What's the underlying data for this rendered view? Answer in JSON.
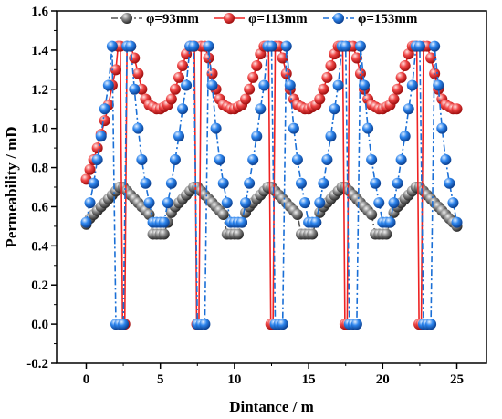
{
  "chart_data": {
    "type": "line",
    "xlabel": "Dintance / m",
    "ylabel": "Permeability / mD",
    "xlim": [
      -2,
      27
    ],
    "ylim": [
      -0.2,
      1.6
    ],
    "xticks": [
      "0",
      "5",
      "10",
      "15",
      "20",
      "25"
    ],
    "yticks": [
      "-0.2",
      "0.0",
      "0.2",
      "0.4",
      "0.6",
      "0.8",
      "1.0",
      "1.2",
      "1.4",
      "1.6"
    ],
    "legend_position": "top",
    "series": [
      {
        "name": "φ=93mm",
        "color": "#555555",
        "line_style": "dash-dot",
        "x": [
          0,
          0.25,
          0.5,
          0.75,
          1,
          1.25,
          1.5,
          1.75,
          2,
          2.25,
          2.5,
          2.75,
          3,
          3.25,
          3.5,
          3.75,
          4,
          4.25,
          4.5,
          4.75,
          5,
          5.25,
          5.5,
          5.75,
          6,
          6.25,
          6.5,
          6.75,
          7,
          7.25,
          7.5,
          7.75,
          8,
          8.25,
          8.5,
          8.75,
          9,
          9.25,
          9.5,
          9.75,
          10,
          10.25,
          10.5,
          10.75,
          11,
          11.25,
          11.5,
          11.75,
          12,
          12.25,
          12.5,
          12.75,
          13,
          13.25,
          13.5,
          13.75,
          14,
          14.25,
          14.5,
          14.75,
          15,
          15.25,
          15.5,
          15.75,
          16,
          16.25,
          16.5,
          16.75,
          17,
          17.25,
          17.5,
          17.75,
          18,
          18.25,
          18.5,
          18.75,
          19,
          19.25,
          19.5,
          19.75,
          20,
          20.25,
          20.5,
          20.75,
          21,
          21.25,
          21.5,
          21.75,
          22,
          22.25,
          22.5,
          22.75,
          23,
          23.25,
          23.5,
          23.75,
          24,
          24.25,
          24.5,
          24.75,
          25
        ],
        "values": [
          0.51,
          0.54,
          0.56,
          0.58,
          0.6,
          0.62,
          0.64,
          0.66,
          0.68,
          0.7,
          0.7,
          0.68,
          0.66,
          0.64,
          0.62,
          0.6,
          0.58,
          0.56,
          0.46,
          0.46,
          0.46,
          0.46,
          0.52,
          0.57,
          0.6,
          0.62,
          0.64,
          0.66,
          0.68,
          0.7,
          0.7,
          0.68,
          0.66,
          0.64,
          0.62,
          0.6,
          0.58,
          0.56,
          0.46,
          0.46,
          0.46,
          0.46,
          0.52,
          0.57,
          0.6,
          0.62,
          0.64,
          0.66,
          0.68,
          0.7,
          0.7,
          0.68,
          0.66,
          0.64,
          0.62,
          0.6,
          0.58,
          0.56,
          0.46,
          0.46,
          0.46,
          0.46,
          0.52,
          0.57,
          0.6,
          0.62,
          0.64,
          0.66,
          0.68,
          0.7,
          0.7,
          0.68,
          0.66,
          0.64,
          0.62,
          0.6,
          0.58,
          0.56,
          0.46,
          0.46,
          0.46,
          0.46,
          0.52,
          0.57,
          0.6,
          0.62,
          0.64,
          0.66,
          0.68,
          0.7,
          0.7,
          0.68,
          0.66,
          0.64,
          0.62,
          0.6,
          0.58,
          0.56,
          0.54,
          0.52,
          0.5
        ]
      },
      {
        "name": "φ=113mm",
        "color": "#ee2222",
        "line_style": "solid",
        "x": [
          0,
          0.25,
          0.5,
          0.75,
          1,
          1.25,
          1.5,
          1.75,
          2,
          2.15,
          2.3,
          2.45,
          2.6,
          2.75,
          3,
          3.25,
          3.5,
          3.75,
          4,
          4.25,
          4.5,
          4.75,
          5,
          5.25,
          5.5,
          5.75,
          6,
          6.25,
          6.5,
          6.75,
          7,
          7.15,
          7.3,
          7.45,
          7.6,
          7.75,
          8,
          8.25,
          8.5,
          8.75,
          9,
          9.25,
          9.5,
          9.75,
          10,
          10.25,
          10.5,
          10.75,
          11,
          11.25,
          11.5,
          11.75,
          12,
          12.15,
          12.3,
          12.45,
          12.6,
          12.75,
          13,
          13.25,
          13.5,
          13.75,
          14,
          14.25,
          14.5,
          14.75,
          15,
          15.25,
          15.5,
          15.75,
          16,
          16.25,
          16.5,
          16.75,
          17,
          17.15,
          17.3,
          17.45,
          17.6,
          17.75,
          18,
          18.25,
          18.5,
          18.75,
          19,
          19.25,
          19.5,
          19.75,
          20,
          20.25,
          20.5,
          20.75,
          21,
          21.25,
          21.5,
          21.75,
          22,
          22.15,
          22.3,
          22.45,
          22.6,
          22.75,
          23,
          23.25,
          23.5,
          23.75,
          24,
          24.25,
          24.5,
          24.75,
          25
        ],
        "values": [
          0.74,
          0.79,
          0.84,
          0.9,
          0.97,
          1.04,
          1.12,
          1.22,
          1.3,
          1.42,
          1.42,
          0.0,
          0.0,
          1.42,
          1.42,
          1.36,
          1.28,
          1.2,
          1.15,
          1.12,
          1.11,
          1.1,
          1.1,
          1.11,
          1.12,
          1.15,
          1.2,
          1.26,
          1.32,
          1.38,
          1.42,
          1.42,
          1.42,
          0.0,
          0.0,
          1.42,
          1.42,
          1.36,
          1.28,
          1.2,
          1.15,
          1.12,
          1.11,
          1.1,
          1.1,
          1.11,
          1.12,
          1.15,
          1.2,
          1.26,
          1.32,
          1.38,
          1.42,
          1.42,
          1.42,
          0.0,
          0.0,
          1.42,
          1.42,
          1.36,
          1.28,
          1.2,
          1.15,
          1.12,
          1.11,
          1.1,
          1.1,
          1.11,
          1.12,
          1.15,
          1.2,
          1.26,
          1.32,
          1.38,
          1.42,
          1.42,
          1.42,
          0.0,
          0.0,
          1.42,
          1.42,
          1.36,
          1.28,
          1.2,
          1.15,
          1.12,
          1.11,
          1.1,
          1.1,
          1.11,
          1.12,
          1.15,
          1.2,
          1.26,
          1.32,
          1.38,
          1.42,
          1.42,
          1.42,
          0.0,
          0.0,
          1.42,
          1.42,
          1.36,
          1.28,
          1.2,
          1.15,
          1.12,
          1.11,
          1.1,
          1.1
        ]
      },
      {
        "name": "φ=153mm",
        "color": "#1a6fd6",
        "line_style": "dash-dot",
        "x": [
          0,
          0.25,
          0.5,
          0.75,
          1,
          1.25,
          1.5,
          1.75,
          2,
          2.25,
          2.5,
          2.75,
          3,
          3.25,
          3.5,
          3.75,
          4,
          4.25,
          4.5,
          4.75,
          5,
          5.25,
          5.5,
          5.75,
          6,
          6.25,
          6.5,
          6.75,
          7,
          7.25,
          7.5,
          7.75,
          8,
          8.25,
          8.5,
          8.75,
          9,
          9.25,
          9.5,
          9.75,
          10,
          10.25,
          10.5,
          10.75,
          11,
          11.25,
          11.5,
          11.75,
          12,
          12.25,
          12.5,
          12.75,
          13,
          13.25,
          13.5,
          13.75,
          14,
          14.25,
          14.5,
          14.75,
          15,
          15.25,
          15.5,
          15.75,
          16,
          16.25,
          16.5,
          16.75,
          17,
          17.25,
          17.5,
          17.75,
          18,
          18.25,
          18.5,
          18.75,
          19,
          19.25,
          19.5,
          19.75,
          20,
          20.25,
          20.5,
          20.75,
          21,
          21.25,
          21.5,
          21.75,
          22,
          22.25,
          22.5,
          22.75,
          23,
          23.25,
          23.5,
          23.75,
          24,
          24.25,
          24.5,
          24.75,
          25
        ],
        "values": [
          0.52,
          0.62,
          0.72,
          0.84,
          0.96,
          1.1,
          1.22,
          1.42,
          0.0,
          0.0,
          0.0,
          1.42,
          1.42,
          1.2,
          1.0,
          0.84,
          0.72,
          0.62,
          0.52,
          0.52,
          0.52,
          0.52,
          0.62,
          0.72,
          0.84,
          0.96,
          1.1,
          1.22,
          1.42,
          1.42,
          0.0,
          0.0,
          0.0,
          1.42,
          1.22,
          1.0,
          0.84,
          0.72,
          0.62,
          0.52,
          0.52,
          0.52,
          0.52,
          0.62,
          0.72,
          0.84,
          0.96,
          1.1,
          1.22,
          1.42,
          1.42,
          0.0,
          0.0,
          0.0,
          1.42,
          1.22,
          1.0,
          0.84,
          0.72,
          0.62,
          0.52,
          0.52,
          0.52,
          0.62,
          0.72,
          0.84,
          0.96,
          1.1,
          1.22,
          1.42,
          1.42,
          0.0,
          0.0,
          0.0,
          1.42,
          1.22,
          1.0,
          0.84,
          0.72,
          0.62,
          0.52,
          0.52,
          0.52,
          0.62,
          0.72,
          0.84,
          0.96,
          1.1,
          1.22,
          1.42,
          1.42,
          0.0,
          0.0,
          0.0,
          1.42,
          1.22,
          1.0,
          0.84,
          0.72,
          0.62,
          0.52
        ]
      }
    ]
  }
}
